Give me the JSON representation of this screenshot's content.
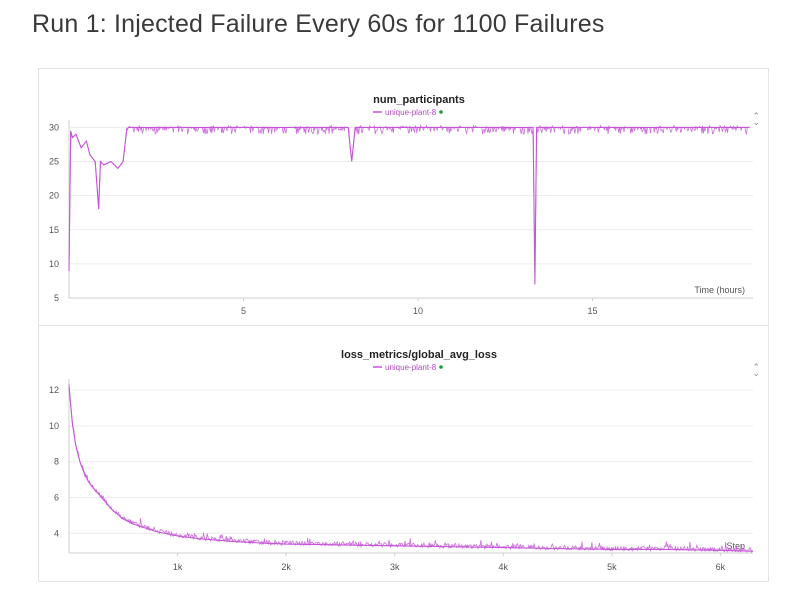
{
  "page": {
    "title": "Run 1: Injected Failure Every 60s for 1100 Failures"
  },
  "series_color": "#c455d6",
  "legend_dot_color": "#1a9e3a",
  "chart_data": [
    {
      "id": "panel1",
      "type": "line",
      "title": "num_participants",
      "legend": "unique-plant-8",
      "xlabel": "Time (hours)",
      "ylabel": "",
      "xlim": [
        0,
        19.6
      ],
      "ylim": [
        5,
        30.5
      ],
      "x_ticks": [
        5,
        10,
        15
      ],
      "y_ticks": [
        5,
        10,
        15,
        20,
        25,
        30
      ],
      "series": [
        {
          "x": [
            0.0,
            0.05,
            0.1,
            0.2,
            0.35,
            0.5,
            0.6,
            0.75,
            0.85,
            0.9,
            1.0,
            1.2,
            1.4,
            1.55,
            1.65,
            1.7,
            3,
            5,
            8.0,
            8.1,
            8.2,
            10,
            13.3,
            13.35,
            13.4,
            15,
            17,
            19.5
          ],
          "y": [
            9,
            29.5,
            28.5,
            29,
            27,
            28,
            26,
            25,
            18,
            25,
            24.5,
            25,
            24,
            25,
            29.5,
            30,
            30,
            30,
            30,
            25,
            30,
            30,
            30,
            7,
            30,
            30,
            30,
            30
          ]
        }
      ]
    },
    {
      "id": "panel2",
      "type": "line",
      "title": "loss_metrics/global_avg_loss",
      "legend": "unique-plant-8",
      "xlabel": "Step",
      "ylabel": "",
      "xlim": [
        0,
        6300
      ],
      "ylim": [
        2.9,
        12.4
      ],
      "x_ticks": [
        "1k",
        "2k",
        "3k",
        "4k",
        "5k",
        "6k"
      ],
      "y_ticks": [
        4,
        6,
        8,
        10,
        12
      ],
      "series": [
        {
          "x": [
            0,
            30,
            60,
            100,
            150,
            200,
            300,
            400,
            500,
            600,
            800,
            1000,
            1200,
            1500,
            1800,
            2000,
            2500,
            3000,
            3500,
            4000,
            4500,
            5000,
            5500,
            6000,
            6300
          ],
          "y": [
            12.2,
            10.2,
            9.0,
            8.0,
            7.2,
            6.7,
            6.0,
            5.3,
            4.8,
            4.5,
            4.1,
            3.85,
            3.7,
            3.55,
            3.45,
            3.4,
            3.35,
            3.3,
            3.25,
            3.2,
            3.15,
            3.1,
            3.1,
            3.05,
            3.0
          ]
        }
      ]
    }
  ]
}
